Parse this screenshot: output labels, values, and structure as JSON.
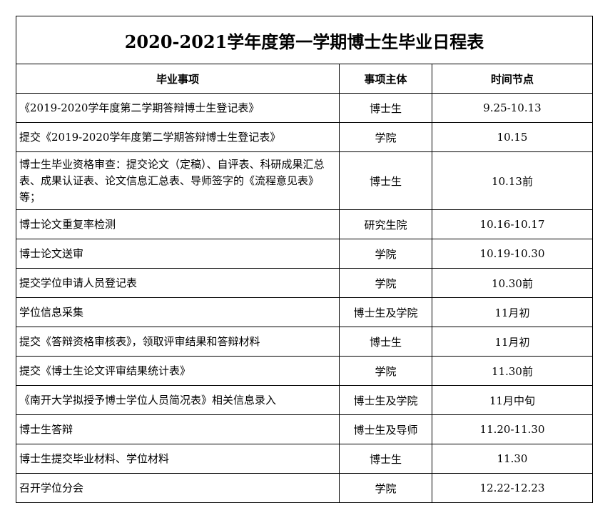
{
  "title": "2020-2021学年度第一学期博士生毕业日程表",
  "headers": [
    "毕业事项",
    "事项主体",
    "时间节点"
  ],
  "rows": [
    {
      "item": "《2019-2020学年度第二学期答辩博士生登记表》",
      "subject": "博士生",
      "time": "9.25-10.13"
    },
    {
      "item": "提交《2019-2020学年度第二学期答辩博士生登记表》",
      "subject": "学院",
      "time": "10.15"
    },
    {
      "item": "博士生毕业资格审查：提交论文（定稿）、自评表、科研成果汇总表、成果认证表、论文信息汇总表、导师签字的《流程意见表》等；",
      "subject": "博士生",
      "time": "10.13前"
    },
    {
      "item": "博士论文重复率检测",
      "subject": "研究生院",
      "time": "10.16-10.17"
    },
    {
      "item": "博士论文送审",
      "subject": "学院",
      "time": "10.19-10.30"
    },
    {
      "item": "提交学位申请人员登记表",
      "subject": "学院",
      "time": "10.30前"
    },
    {
      "item": "学位信息采集",
      "subject": "博士生及学院",
      "time": "11月初"
    },
    {
      "item": "提交《答辩资格审核表》，领取评审结果和答辩材料",
      "subject": "博士生",
      "time": "11月初"
    },
    {
      "item": "提交《博士生论文评审结果统计表》",
      "subject": "学院",
      "time": "11.30前"
    },
    {
      "item": "《南开大学拟授予博士学位人员简况表》相关信息录入",
      "subject": "博士生及学院",
      "time": "11月中旬"
    },
    {
      "item": "博士生答辩",
      "subject": "博士生及导师",
      "time": "11.20-11.30"
    },
    {
      "item": "博士生提交毕业材料、学位材料",
      "subject": "博士生",
      "time": "11.30"
    },
    {
      "item": "召开学位分会",
      "subject": "学院",
      "time": "12.22-12.23"
    }
  ]
}
